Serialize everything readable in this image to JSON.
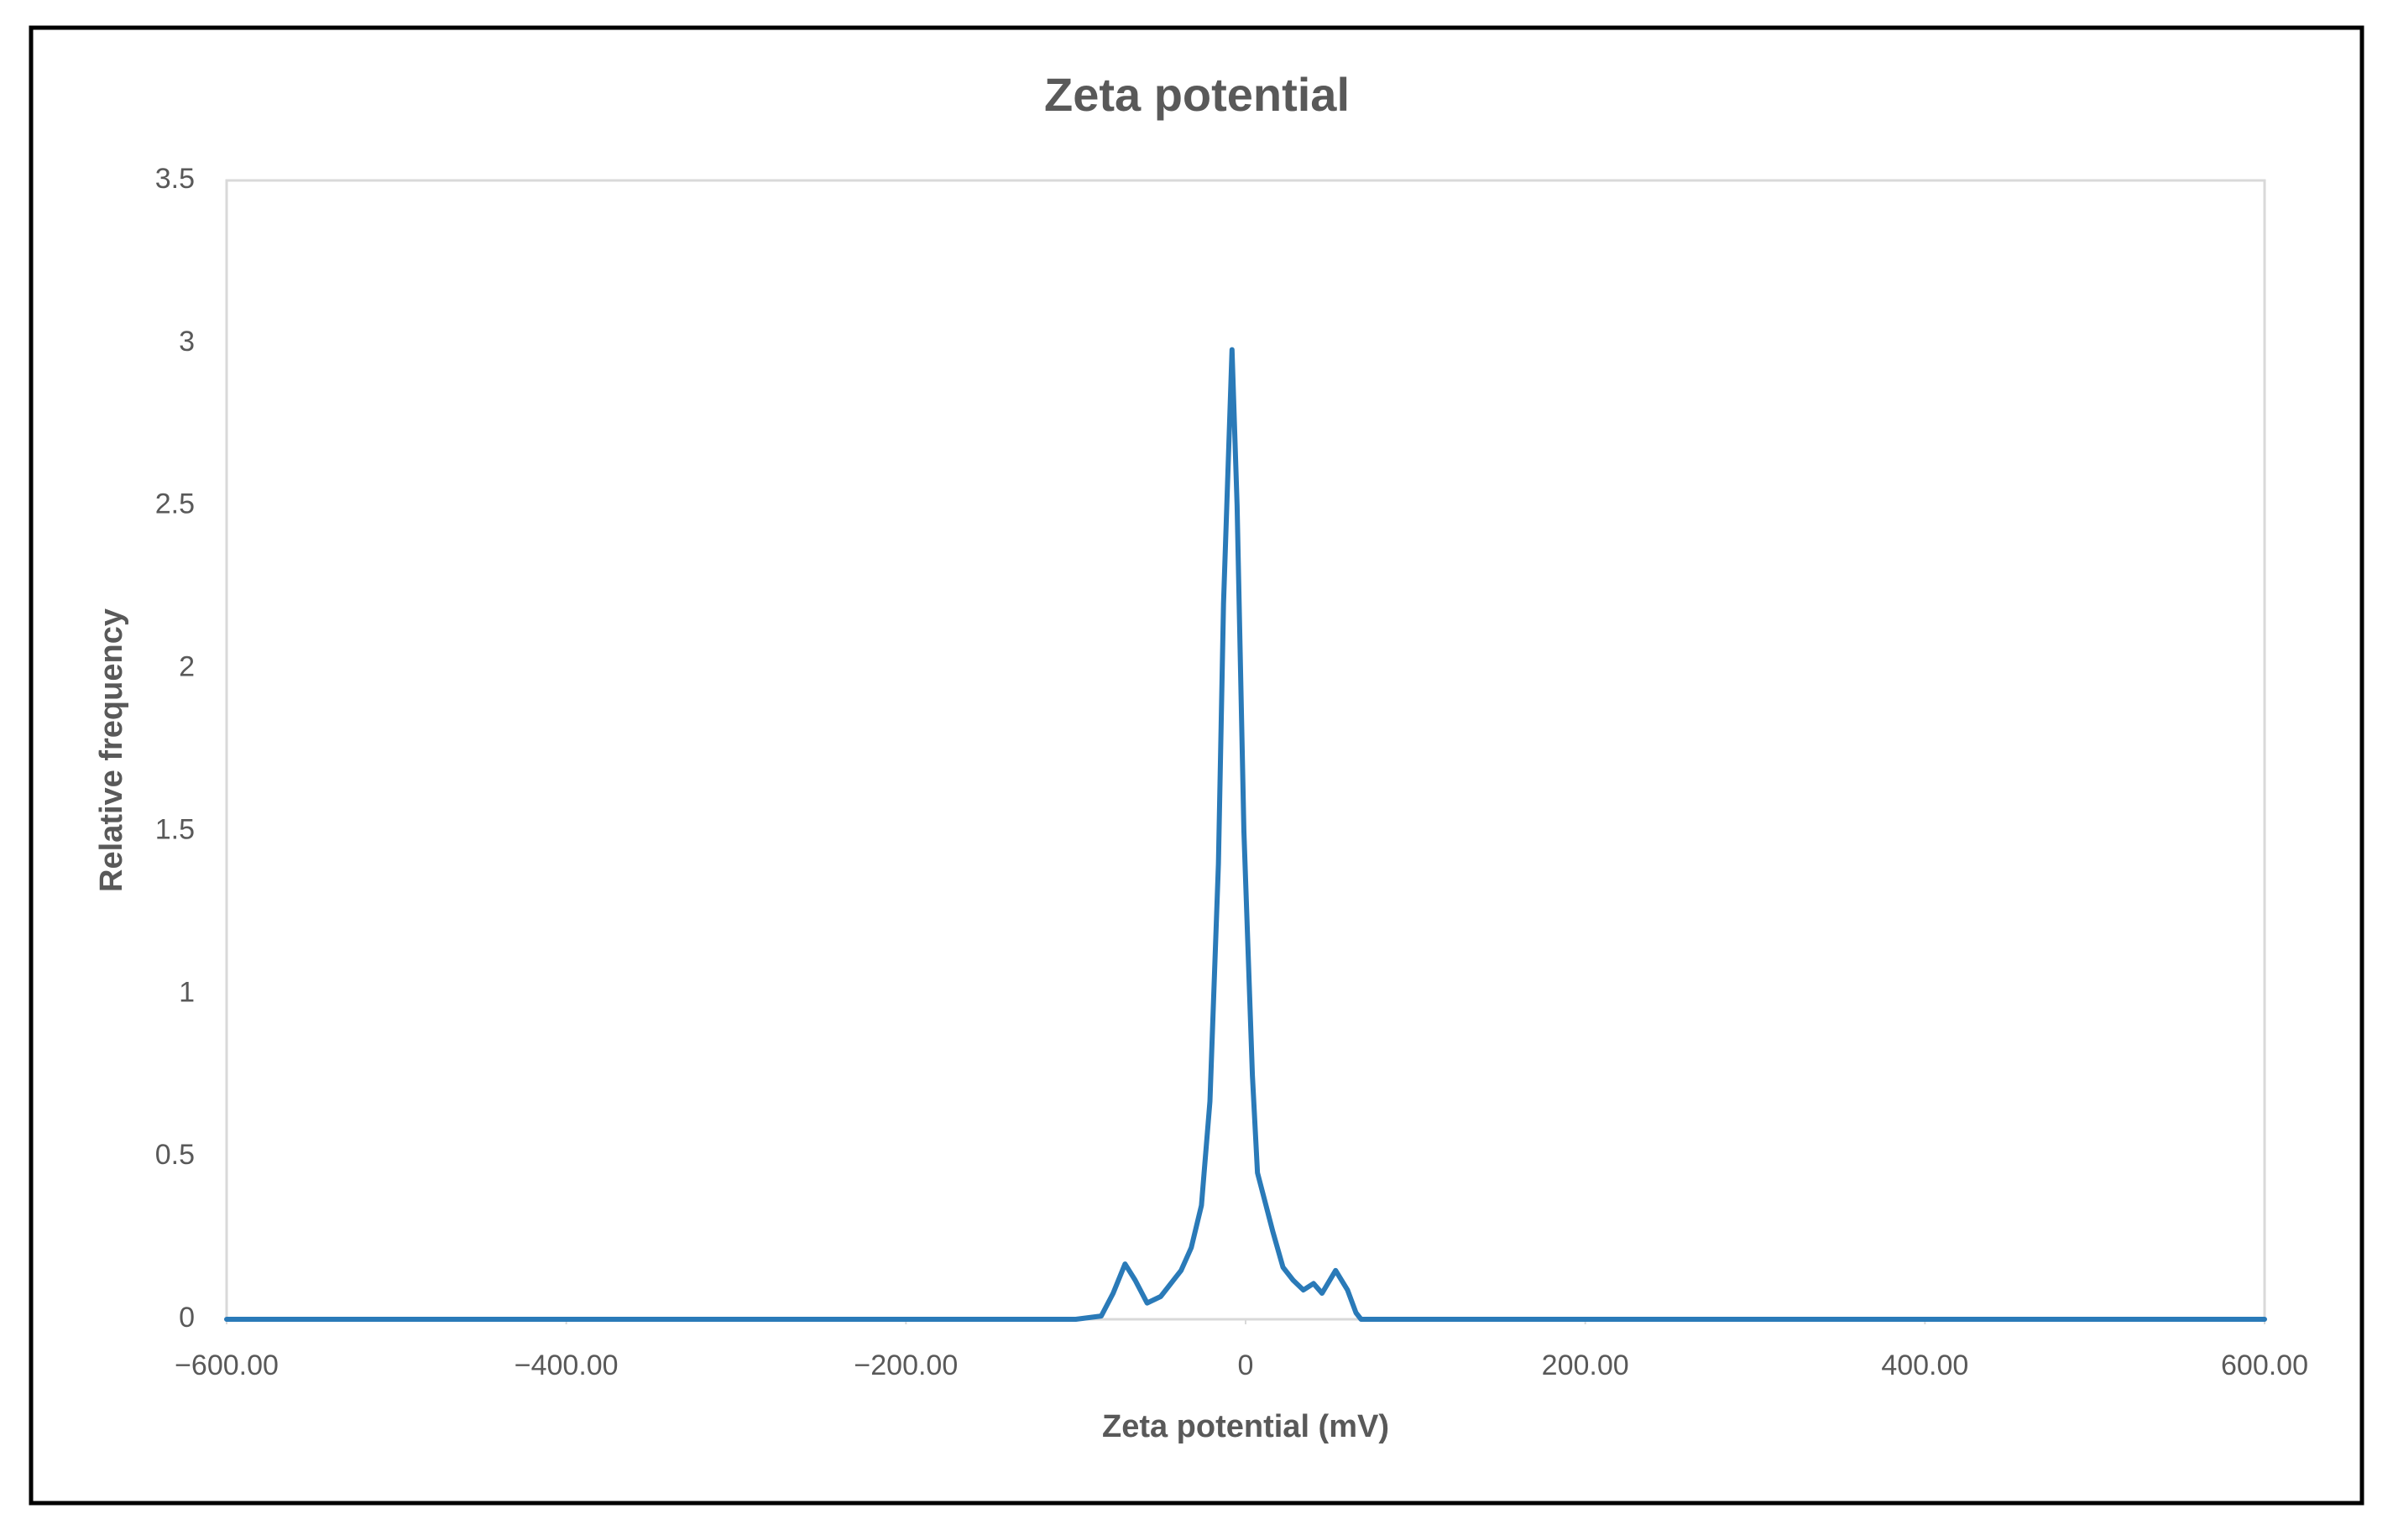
{
  "chart_data": {
    "type": "line",
    "title": "Zeta potential",
    "x_label": "Zeta potential (mV)",
    "y_label": "Relative frequency",
    "xlim": [
      -600,
      600
    ],
    "ylim": [
      0,
      3.5
    ],
    "xticks": [
      {
        "value": -600,
        "label": "−600.00"
      },
      {
        "value": -400,
        "label": "−400.00"
      },
      {
        "value": -200,
        "label": "−200.00"
      },
      0,
      {
        "value": 200,
        "label": "200.00"
      },
      {
        "value": 400,
        "label": "400.00"
      },
      {
        "value": 600,
        "label": "600.00"
      }
    ],
    "yticks": [
      0,
      0.5,
      1,
      1.5,
      2,
      2.5,
      3,
      3.5
    ],
    "grid": false,
    "series": [
      {
        "name": "Zeta potential",
        "color": "#2a7ab8",
        "x": [
          -600,
          -100,
          -85,
          -78,
          -71,
          -65,
          -58,
          -50,
          -44,
          -38,
          -32,
          -26,
          -21,
          -16,
          -13,
          -8,
          -5,
          -1,
          4,
          7,
          12,
          16,
          22,
          28,
          34,
          40,
          45,
          53,
          60,
          65,
          68,
          600
        ],
        "values": [
          0,
          0,
          0.01,
          0.08,
          0.17,
          0.12,
          0.05,
          0.07,
          0.11,
          0.15,
          0.22,
          0.35,
          0.67,
          1.4,
          2.2,
          2.98,
          2.5,
          1.5,
          0.75,
          0.45,
          0.35,
          0.27,
          0.16,
          0.12,
          0.09,
          0.11,
          0.08,
          0.15,
          0.09,
          0.02,
          0,
          0
        ]
      }
    ]
  }
}
